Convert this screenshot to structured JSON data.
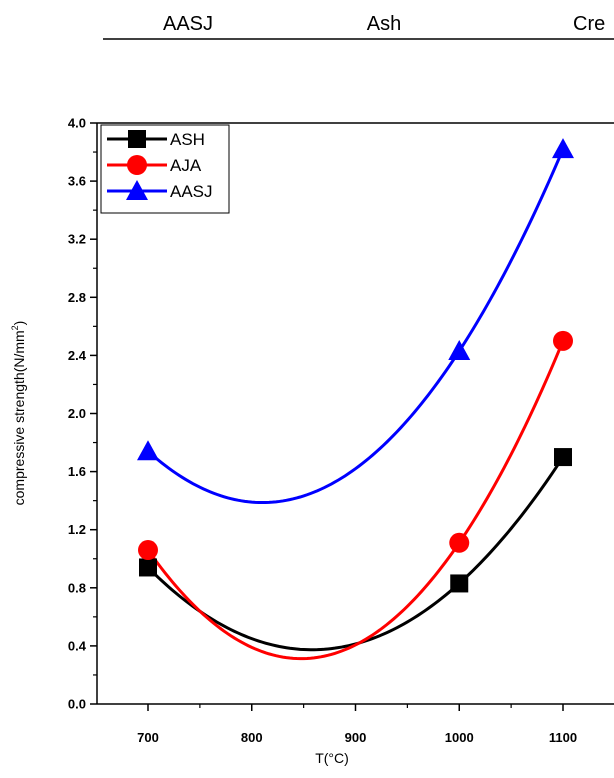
{
  "header": {
    "cols": [
      "AASJ",
      "Ash",
      "Cre"
    ]
  },
  "chart_data": {
    "type": "line",
    "title": "",
    "xlabel": "T(°C)",
    "ylabel": "compressive strength(N/mm",
    "ylabel_sup": "2",
    "ylabel_close": ")",
    "xlim": [
      650,
      1120
    ],
    "ylim": [
      0.0,
      4.0
    ],
    "x_ticks": [
      700,
      800,
      900,
      1000,
      1100
    ],
    "y_ticks": [
      "0.0",
      "0.4",
      "0.8",
      "1.2",
      "1.6",
      "2.0",
      "2.4",
      "2.8",
      "3.2",
      "3.6",
      "4.0"
    ],
    "grid": false,
    "legend_position": "top-left",
    "series": [
      {
        "name": "ASH",
        "color": "#000000",
        "marker": "square",
        "x": [
          700,
          1000,
          1100
        ],
        "y": [
          0.94,
          0.83,
          1.7
        ]
      },
      {
        "name": "AJA",
        "color": "#ff0000",
        "marker": "circle",
        "x": [
          700,
          1000,
          1100
        ],
        "y": [
          1.06,
          1.11,
          2.5
        ]
      },
      {
        "name": "AASJ",
        "color": "#0000ff",
        "marker": "triangle",
        "x": [
          700,
          1000,
          1100
        ],
        "y": [
          1.74,
          2.43,
          3.82
        ]
      }
    ]
  }
}
